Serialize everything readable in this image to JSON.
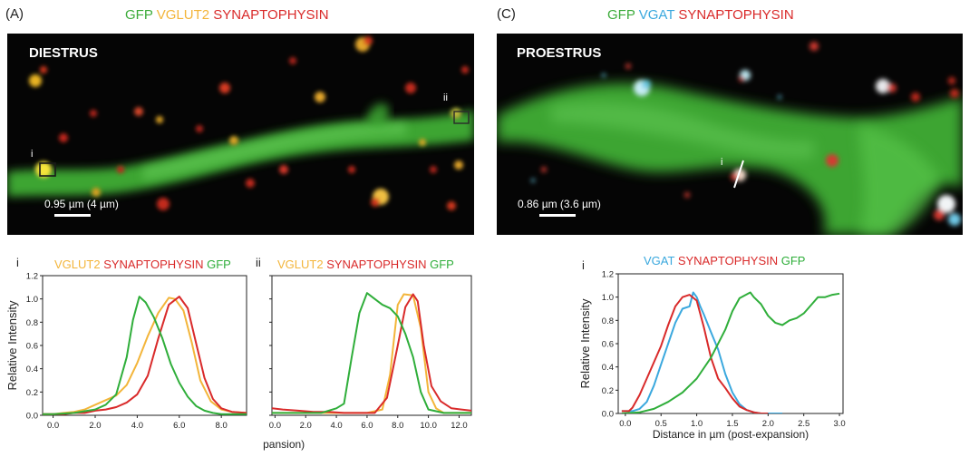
{
  "panel_a": {
    "letter": "(A)",
    "title_parts": [
      {
        "text": "GFP",
        "color": "#3cab3a"
      },
      {
        "text": "VGLUT2",
        "color": "#f3b53a"
      },
      {
        "text": "SYNAPTOPHYSIN",
        "color": "#d92a2a"
      }
    ],
    "stage": "DIESTRUS",
    "scale_label": "0.95 µm (4 µm)",
    "roi_labels": [
      "i",
      "ii"
    ]
  },
  "panel_c": {
    "letter": "(C)",
    "title_parts": [
      {
        "text": "GFP",
        "color": "#3cab3a"
      },
      {
        "text": "VGAT",
        "color": "#3aa8de"
      },
      {
        "text": "SYNAPTOPHYSIN",
        "color": "#d92a2a"
      }
    ],
    "stage": "PROESTRUS",
    "scale_label": "0.86 µm (3.6 µm)",
    "roi_labels": [
      "i"
    ]
  },
  "chart_data": [
    {
      "id": "chart-a-i",
      "type": "line",
      "sub_label": "i",
      "title_parts": [
        {
          "text": "VGLUT2",
          "color": "#f3b53a"
        },
        {
          "text": "SYNAPTOPHYSIN",
          "color": "#d92a2a"
        },
        {
          "text": "GFP",
          "color": "#2fae3a"
        }
      ],
      "ylabel": "Relative Intensity",
      "xlabel": "",
      "xlim": [
        -0.5,
        9.2
      ],
      "ylim": [
        0,
        1.2
      ],
      "xticks": [
        0,
        2,
        4,
        6,
        8
      ],
      "xtick_labels": [
        "0.0",
        "2.0",
        "4.0",
        "6.0",
        "8.0"
      ],
      "yticks": [
        0,
        0.2,
        0.4,
        0.6,
        0.8,
        1.0,
        1.2
      ],
      "ytick_labels": [
        "0.0",
        "0.2",
        "0.4",
        "0.6",
        "0.8",
        "1.0",
        "1.2"
      ],
      "series": [
        {
          "name": "VGLUT2",
          "color": "#f3b53a",
          "x": [
            -0.5,
            0,
            0.5,
            1,
            1.5,
            2,
            2.5,
            3,
            3.5,
            4,
            4.5,
            5,
            5.5,
            5.8,
            6.2,
            6.6,
            7,
            7.5,
            8,
            8.5,
            9.2
          ],
          "y": [
            0.01,
            0.01,
            0.02,
            0.03,
            0.05,
            0.09,
            0.13,
            0.17,
            0.26,
            0.45,
            0.68,
            0.88,
            1.01,
            1.0,
            0.9,
            0.62,
            0.3,
            0.12,
            0.05,
            0.03,
            0.02
          ]
        },
        {
          "name": "SYNAPTOPHYSIN",
          "color": "#d92a2a",
          "x": [
            -0.5,
            0,
            0.5,
            1,
            1.5,
            2,
            2.5,
            3,
            3.5,
            4,
            4.5,
            5,
            5.5,
            6,
            6.4,
            6.8,
            7.2,
            7.6,
            8,
            8.5,
            9.2
          ],
          "y": [
            0.01,
            0.01,
            0.01,
            0.02,
            0.02,
            0.04,
            0.05,
            0.07,
            0.11,
            0.18,
            0.34,
            0.66,
            0.95,
            1.02,
            0.92,
            0.62,
            0.32,
            0.14,
            0.06,
            0.03,
            0.02
          ]
        },
        {
          "name": "GFP",
          "color": "#2fae3a",
          "x": [
            -0.5,
            0,
            1,
            2,
            2.5,
            3,
            3.5,
            3.8,
            4.1,
            4.4,
            4.8,
            5.2,
            5.6,
            6,
            6.4,
            6.8,
            7.2,
            7.6,
            8,
            8.5,
            9.2
          ],
          "y": [
            0.01,
            0.01,
            0.02,
            0.05,
            0.09,
            0.18,
            0.5,
            0.82,
            1.02,
            0.97,
            0.84,
            0.66,
            0.44,
            0.28,
            0.16,
            0.08,
            0.04,
            0.02,
            0.01,
            0.01,
            0.01
          ]
        }
      ]
    },
    {
      "id": "chart-a-ii",
      "type": "line",
      "sub_label": "ii",
      "title_parts": [
        {
          "text": "VGLUT2",
          "color": "#f3b53a"
        },
        {
          "text": "SYNAPTOPHYSIN",
          "color": "#d92a2a"
        },
        {
          "text": "GFP",
          "color": "#2fae3a"
        }
      ],
      "ylabel": "",
      "xlabel": "Distance in µm (post-expansion)",
      "xlim": [
        -0.2,
        12.8
      ],
      "ylim": [
        0,
        1.2
      ],
      "xticks": [
        0,
        2,
        4,
        6,
        8,
        10,
        12
      ],
      "xtick_labels": [
        "0.0",
        "2.0",
        "4.0",
        "6.0",
        "8.0",
        "10.0",
        "12.0"
      ],
      "yticks": [
        0,
        0.2,
        0.4,
        0.6,
        0.8,
        1.0,
        1.2
      ],
      "ytick_labels": [
        "0.0",
        "0.2",
        "0.4",
        "0.6",
        "0.8",
        "1.0",
        "1.2"
      ],
      "series": [
        {
          "name": "VGLUT2",
          "color": "#f3b53a",
          "x": [
            -0.2,
            1,
            2,
            3,
            4,
            5,
            6,
            7,
            7.5,
            8,
            8.4,
            9,
            9.5,
            10,
            10.5,
            11,
            11.5,
            12,
            12.8
          ],
          "y": [
            0.02,
            0.02,
            0.02,
            0.02,
            0.02,
            0.02,
            0.02,
            0.05,
            0.35,
            0.95,
            1.04,
            1.03,
            0.75,
            0.2,
            0.06,
            0.02,
            0.02,
            0.02,
            0.02
          ]
        },
        {
          "name": "SYNAPTOPHYSIN",
          "color": "#d92a2a",
          "x": [
            -0.2,
            0.5,
            1.5,
            2.5,
            3.5,
            4.5,
            5.5,
            6.5,
            7.3,
            8,
            8.5,
            9,
            9.3,
            9.7,
            10.2,
            10.8,
            11.5,
            12.8
          ],
          "y": [
            0.06,
            0.05,
            0.04,
            0.03,
            0.03,
            0.02,
            0.02,
            0.02,
            0.15,
            0.6,
            0.93,
            1.04,
            0.98,
            0.6,
            0.25,
            0.12,
            0.06,
            0.04
          ]
        },
        {
          "name": "GFP",
          "color": "#2fae3a",
          "x": [
            -0.2,
            1,
            2,
            3,
            4,
            4.5,
            5,
            5.5,
            6,
            6.5,
            7,
            7.5,
            8,
            8.5,
            9,
            9.5,
            10,
            11,
            12,
            12.8
          ],
          "y": [
            0.02,
            0.02,
            0.02,
            0.02,
            0.06,
            0.1,
            0.5,
            0.88,
            1.05,
            1.0,
            0.95,
            0.92,
            0.85,
            0.7,
            0.5,
            0.2,
            0.05,
            0.02,
            0.02,
            0.02
          ]
        }
      ]
    },
    {
      "id": "chart-c-i",
      "type": "line",
      "sub_label": "i",
      "title_parts": [
        {
          "text": "VGAT",
          "color": "#3aa8de"
        },
        {
          "text": "SYNAPTOPHYSIN",
          "color": "#d92a2a"
        },
        {
          "text": "GFP",
          "color": "#2fae3a"
        }
      ],
      "ylabel": "Relative Intensity",
      "xlabel": "Distance in µm (post-expansion)",
      "xlim": [
        -0.1,
        3.05
      ],
      "ylim": [
        0,
        1.2
      ],
      "xticks": [
        0,
        0.5,
        1,
        1.5,
        2,
        2.5,
        3
      ],
      "xtick_labels": [
        "0.0",
        "0.5",
        "1.0",
        "1.5",
        "2.0",
        "2.5",
        "3.0"
      ],
      "yticks": [
        0,
        0.2,
        0.4,
        0.6,
        0.8,
        1.0,
        1.2
      ],
      "ytick_labels": [
        "0.0",
        "0.2",
        "0.4",
        "0.6",
        "0.8",
        "1.0",
        "1.2"
      ],
      "series": [
        {
          "name": "VGAT",
          "color": "#3aa8de",
          "x": [
            -0.05,
            0.1,
            0.2,
            0.3,
            0.4,
            0.5,
            0.6,
            0.7,
            0.8,
            0.9,
            0.95,
            1.0,
            1.05,
            1.1,
            1.2,
            1.3,
            1.4,
            1.5,
            1.6,
            1.7,
            1.8,
            1.9,
            2.0,
            2.2
          ],
          "y": [
            0.02,
            0.02,
            0.04,
            0.1,
            0.24,
            0.42,
            0.6,
            0.78,
            0.9,
            0.92,
            1.04,
            1.0,
            0.92,
            0.85,
            0.7,
            0.55,
            0.34,
            0.18,
            0.08,
            0.03,
            0.01,
            0.0,
            0.0,
            0.0
          ]
        },
        {
          "name": "SYNAPTOPHYSIN",
          "color": "#d92a2a",
          "x": [
            -0.05,
            0.05,
            0.1,
            0.2,
            0.3,
            0.4,
            0.5,
            0.6,
            0.7,
            0.8,
            0.9,
            1.0,
            1.1,
            1.2,
            1.3,
            1.4,
            1.5,
            1.6,
            1.7,
            1.8,
            1.9,
            2.0
          ],
          "y": [
            0.02,
            0.02,
            0.05,
            0.16,
            0.3,
            0.44,
            0.58,
            0.76,
            0.92,
            1.0,
            1.02,
            0.97,
            0.74,
            0.48,
            0.3,
            0.22,
            0.13,
            0.06,
            0.03,
            0.01,
            0.0,
            0.0
          ]
        },
        {
          "name": "GFP",
          "color": "#2fae3a",
          "x": [
            -0.05,
            0.2,
            0.4,
            0.6,
            0.8,
            1.0,
            1.2,
            1.4,
            1.5,
            1.6,
            1.75,
            1.8,
            1.9,
            2.0,
            2.1,
            2.2,
            2.3,
            2.4,
            2.5,
            2.6,
            2.7,
            2.8,
            2.9,
            3.0
          ],
          "y": [
            0.0,
            0.01,
            0.04,
            0.1,
            0.18,
            0.3,
            0.48,
            0.72,
            0.88,
            0.99,
            1.04,
            1.0,
            0.94,
            0.84,
            0.78,
            0.76,
            0.8,
            0.82,
            0.86,
            0.93,
            1.0,
            1.0,
            1.02,
            1.03
          ]
        }
      ]
    }
  ]
}
